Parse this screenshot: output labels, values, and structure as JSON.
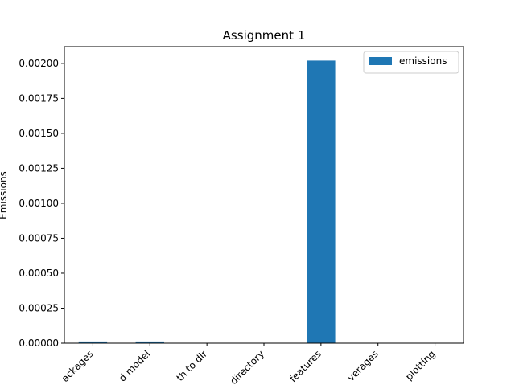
{
  "chart_data": {
    "type": "bar",
    "title": "Assignment 1",
    "xlabel": "",
    "ylabel": "Emissions",
    "categories": [
      "ackages",
      "d model",
      "th to dir",
      "directory",
      "features",
      "verages",
      "plotting"
    ],
    "series": [
      {
        "name": "emissions",
        "color": "#1f77b4",
        "values": [
          1.2e-05,
          1.2e-05,
          5e-07,
          5e-07,
          0.00202,
          5e-07,
          5e-07
        ]
      }
    ],
    "ylim": [
      0,
      0.00212
    ],
    "yticks": [
      0,
      0.00025,
      0.0005,
      0.00075,
      0.001,
      0.00125,
      0.0015,
      0.00175,
      0.002
    ],
    "ytick_labels": [
      "0.00000",
      "0.00025",
      "0.00050",
      "0.00075",
      "0.00100",
      "0.00125",
      "0.00150",
      "0.00175",
      "0.00200"
    ],
    "grid": false,
    "legend": "top-right"
  }
}
